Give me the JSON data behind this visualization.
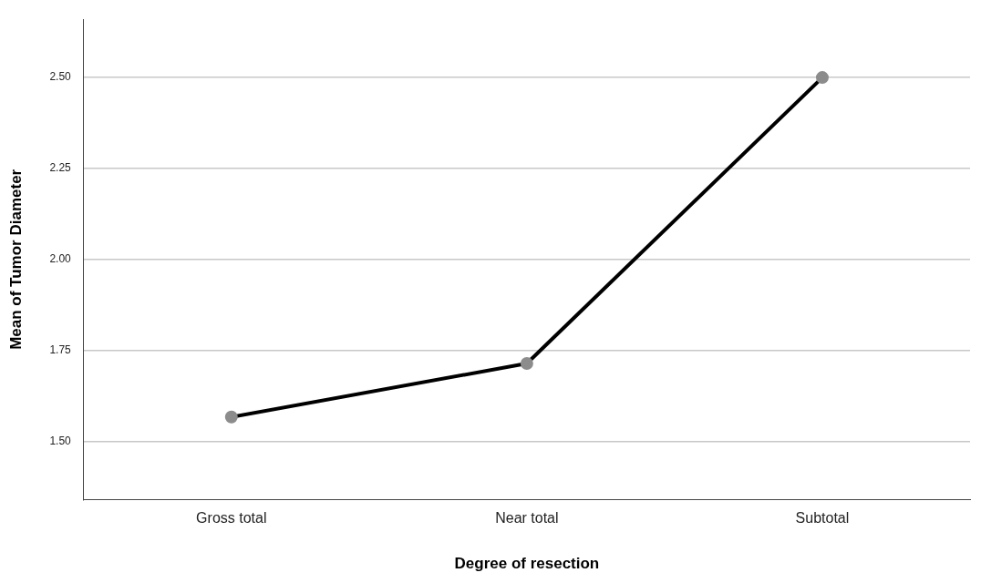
{
  "chart_data": {
    "type": "line",
    "xlabel": "Degree of resection",
    "ylabel": "Mean of Tumor Diameter",
    "categories": [
      "Gross total",
      "Near total",
      "Subtotal"
    ],
    "series": [
      {
        "color": "#000000",
        "values": [
          1.567,
          1.714,
          2.5
        ]
      }
    ],
    "ylim": [
      1.34,
      2.66
    ],
    "yticks": [
      {
        "value": 1.5,
        "label": "1.50"
      },
      {
        "value": 1.75,
        "label": "1.75"
      },
      {
        "value": 2.0,
        "label": "2.00"
      },
      {
        "value": 2.25,
        "label": "2.25"
      },
      {
        "value": 2.5,
        "label": "2.50"
      }
    ],
    "grid": "y",
    "legend": false,
    "marker": "circle",
    "line_style": "solid"
  }
}
